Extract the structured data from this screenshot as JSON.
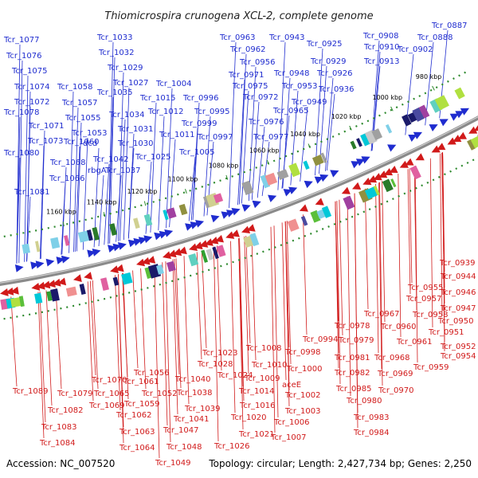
{
  "title": "Thiomicrospira crunogena XCL-2, complete genome",
  "footer": {
    "accession": "Accession: NC_007520",
    "summary": "Topology: circular; Length: 2,427,734 bp; Genes: 2,250"
  },
  "colors": {
    "forward": "#1f2ccf",
    "reverse": "#d11a1a",
    "backbone": "#888888",
    "dots": "#2f8a2f"
  },
  "kbp_ticks": [
    "980 kbp",
    "1000 kbp",
    "1020 kbp",
    "1040 kbp",
    "1060 kbp",
    "1080 kbp",
    "1100 kbp",
    "1120 kbp",
    "1140 kbp",
    "1160 kbp"
  ],
  "top_labels": [
    "Tcr_1077",
    "Tcr_1076",
    "Tcr_1075",
    "Tcr_1074",
    "Tcr_1072",
    "Tcr_1078",
    "Tcr_1071",
    "Tcr_1073",
    "Tcr_1080",
    "Tcr_1068",
    "Tcr_1066",
    "Tcr_1081",
    "Tcr_1058",
    "Tcr_1057",
    "Tcr_1055",
    "Tcr_1053",
    "Tcr_1060",
    "rbgA",
    "dcd",
    "Tcr_1033",
    "Tcr_1032",
    "Tcr_1029",
    "Tcr_1027",
    "Tcr_1035",
    "Tcr_1034",
    "Tcr_1031",
    "Tcr_1030",
    "Tcr_1042",
    "Tcr_1037",
    "Tcr_1025",
    "Tcr_1004",
    "Tcr_1015",
    "Tcr_1012",
    "Tcr_1011",
    "Tcr_1005",
    "Tcr_0996",
    "Tcr_0995",
    "Tcr_0999",
    "Tcr_0997",
    "Tcr_0963",
    "Tcr_0943",
    "Tcr_0962",
    "Tcr_0956",
    "Tcr_0971",
    "Tcr_0975",
    "Tcr_0972",
    "Tcr_0976",
    "Tcr_0977",
    "Tcr_0965",
    "Tcr_0948",
    "Tcr_0953",
    "Tcr_0949",
    "Tcr_0925",
    "Tcr_0929",
    "Tcr_0926",
    "Tcr_0936",
    "Tcr_0908",
    "Tcr_0910",
    "Tcr_0913",
    "Tcr_0887",
    "Tcr_0888",
    "Tcr_0902"
  ],
  "bottom_labels": [
    "Tcr_0939",
    "Tcr_0944",
    "Tcr_0946",
    "Tcr_0955",
    "Tcr_0957",
    "Tcr_0947",
    "Tcr_0958",
    "Tcr_0950",
    "Tcr_0951",
    "Tcr_0952",
    "Tcr_0954",
    "Tcr_0959",
    "Tcr_0961",
    "Tcr_0960",
    "Tcr_0967",
    "Tcr_0978",
    "Tcr_0979",
    "Tcr_0981",
    "Tcr_0968",
    "Tcr_0969",
    "Tcr_0982",
    "Tcr_0970",
    "Tcr_0985",
    "Tcr_0980",
    "Tcr_0983",
    "Tcr_0984",
    "Tcr_0994",
    "Tcr_0998",
    "Tcr_1000",
    "aceE",
    "Tcr_1002",
    "Tcr_1003",
    "Tcr_1006",
    "Tcr_1007",
    "Tcr_1008",
    "Tcr_1010",
    "Tcr_1009",
    "Tcr_1014",
    "Tcr_1016",
    "Tcr_1020",
    "Tcr_1021",
    "Tcr_1023",
    "Tcr_1028",
    "Tcr_1024",
    "Tcr_1026",
    "Tcr_1040",
    "Tcr_1038",
    "Tcr_1039",
    "Tcr_1041",
    "Tcr_1047",
    "Tcr_1048",
    "Tcr_1049",
    "Tcr_1056",
    "Tcr_1061",
    "Tcr_1052",
    "Tcr_1059",
    "Tcr_1062",
    "Tcr_1063",
    "Tcr_1064",
    "Tcr_1070",
    "Tcr_1065",
    "Tcr_1069",
    "Tcr_1089",
    "Tcr_1079",
    "Tcr_1082",
    "Tcr_1083",
    "Tcr_1084"
  ]
}
